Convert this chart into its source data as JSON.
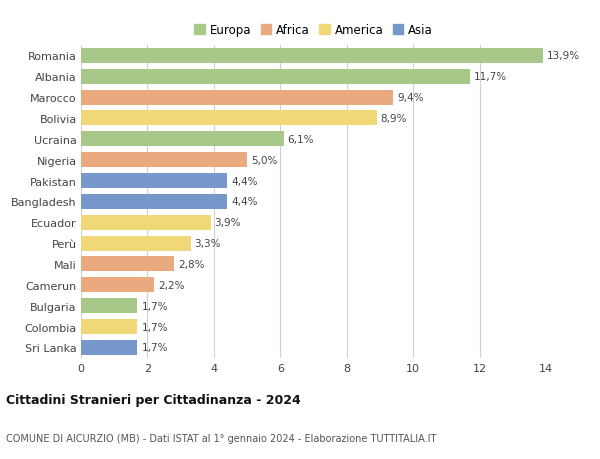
{
  "countries": [
    "Romania",
    "Albania",
    "Marocco",
    "Bolivia",
    "Ucraina",
    "Nigeria",
    "Pakistan",
    "Bangladesh",
    "Ecuador",
    "Perù",
    "Mali",
    "Camerun",
    "Bulgaria",
    "Colombia",
    "Sri Lanka"
  ],
  "values": [
    13.9,
    11.7,
    9.4,
    8.9,
    6.1,
    5.0,
    4.4,
    4.4,
    3.9,
    3.3,
    2.8,
    2.2,
    1.7,
    1.7,
    1.7
  ],
  "labels": [
    "13,9%",
    "11,7%",
    "9,4%",
    "8,9%",
    "6,1%",
    "5,0%",
    "4,4%",
    "4,4%",
    "3,9%",
    "3,3%",
    "2,8%",
    "2,2%",
    "1,7%",
    "1,7%",
    "1,7%"
  ],
  "continents": [
    "Europa",
    "Europa",
    "Africa",
    "America",
    "Europa",
    "Africa",
    "Asia",
    "Asia",
    "America",
    "America",
    "Africa",
    "Africa",
    "Europa",
    "America",
    "Asia"
  ],
  "continent_colors": {
    "Europa": "#a8c88a",
    "Africa": "#e8aa7e",
    "America": "#f0d878",
    "Asia": "#7898cc"
  },
  "legend_order": [
    "Europa",
    "Africa",
    "America",
    "Asia"
  ],
  "title1": "Cittadini Stranieri per Cittadinanza - 2024",
  "title2": "COMUNE DI AICURZIO (MB) - Dati ISTAT al 1° gennaio 2024 - Elaborazione TUTTITALIA.IT",
  "xlim": [
    0,
    14
  ],
  "xticks": [
    0,
    2,
    4,
    6,
    8,
    10,
    12,
    14
  ],
  "bg_color": "#ffffff",
  "grid_color": "#d0d0d0",
  "bar_height": 0.72
}
